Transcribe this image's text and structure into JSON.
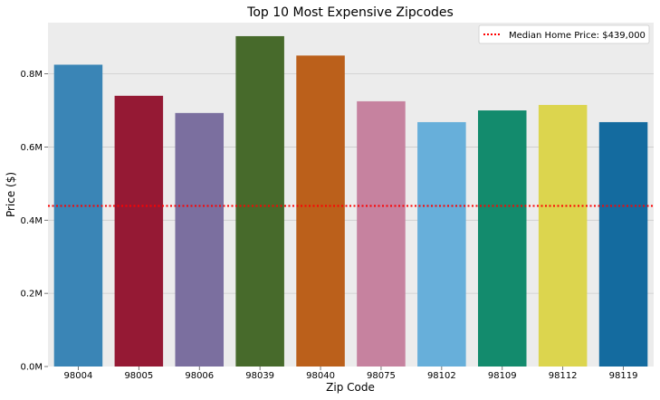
{
  "chart_data": {
    "type": "bar",
    "title": "Top 10 Most Expensive Zipcodes",
    "xlabel": "Zip Code",
    "ylabel": "Price ($)",
    "categories": [
      "98004",
      "98005",
      "98006",
      "98039",
      "98040",
      "98075",
      "98102",
      "98109",
      "98112",
      "98119"
    ],
    "values": [
      825000,
      740000,
      693000,
      903000,
      850000,
      725000,
      668000,
      700000,
      715000,
      668000
    ],
    "colors": [
      "#3a85b6",
      "#951934",
      "#7b6f9f",
      "#476a2b",
      "#bb601b",
      "#c6829f",
      "#67afda",
      "#138b6d",
      "#dcd54e",
      "#146b9f"
    ],
    "ylim": [
      0,
      940000
    ],
    "yticks": [
      0,
      200000,
      400000,
      600000,
      800000
    ],
    "ytick_labels": [
      "0.0M",
      "0.2M",
      "0.4M",
      "0.6M",
      "0.8M"
    ],
    "grid": true,
    "background": "#ececec",
    "reference_line": {
      "value": 439000,
      "color": "#ff0000",
      "label": "Median Home Price: $439,000"
    },
    "legend_position": "top-right"
  }
}
